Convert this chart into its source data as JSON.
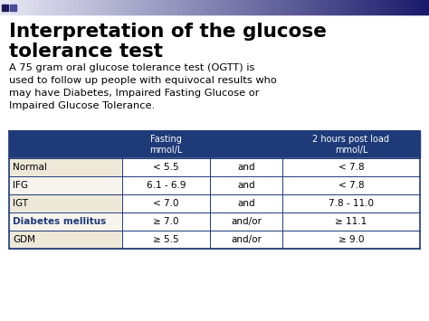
{
  "title_line1": "Interpretation of the glucose",
  "title_line2": "tolerance test",
  "body_text": "A 75 gram oral glucose tolerance test (OGTT) is\nused to follow up people with equivocal results who\nmay have Diabetes, Impaired Fasting Glucose or\nImpaired Glucose Tolerance.",
  "header_row": [
    "",
    "Fasting\nmmol/L",
    "",
    "2 hours post load\nmmol/L"
  ],
  "table_rows": [
    [
      "Normal",
      "< 5.5",
      "and",
      "< 7.8"
    ],
    [
      "IFG",
      "6.1 - 6.9",
      "and",
      "< 7.8"
    ],
    [
      "IGT",
      "< 7.0",
      "and",
      "7.8 - 11.0"
    ],
    [
      "Diabetes mellitus",
      "≥ 7.0",
      "and/or",
      "≥ 11.1"
    ],
    [
      "GDM",
      "≥ 5.5",
      "and/or",
      "≥ 9.0"
    ]
  ],
  "bg_color": "#ffffff",
  "table_header_bg": "#1e3a78",
  "table_header_fg": "#ffffff",
  "row_label_bg_odd": "#ede8d8",
  "row_label_bg_even": "#f7f4ee",
  "row_data_bg": "#ffffff",
  "table_border_color": "#1e3a78",
  "title_color": "#000000",
  "body_text_color": "#000000",
  "highlight_row": 3,
  "highlight_label_color": "#1e3a78",
  "top_bar_left": "#e8e8f4",
  "top_bar_right": "#1a1a6a",
  "sq1_color": "#1a1a5a",
  "sq2_color": "#4a4a9a"
}
